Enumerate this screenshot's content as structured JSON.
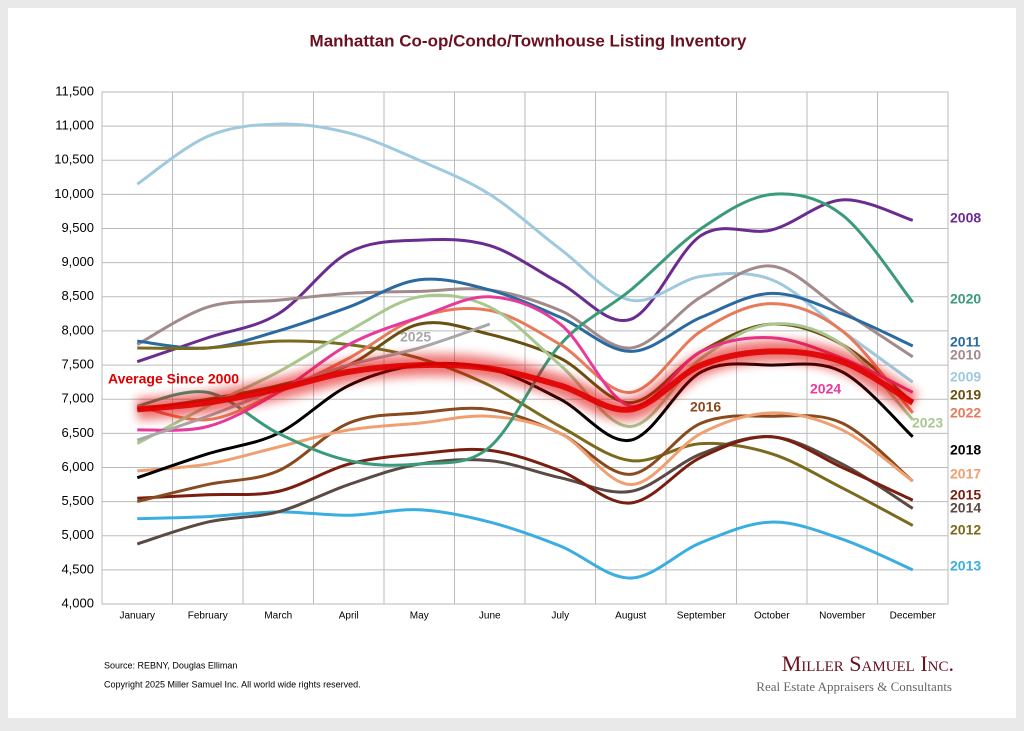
{
  "chart_data": {
    "type": "line",
    "title": "Manhattan Co-op/Condo/Townhouse Listing Inventory",
    "categories": [
      "January",
      "February",
      "March",
      "April",
      "May",
      "June",
      "July",
      "August",
      "September",
      "October",
      "November",
      "December"
    ],
    "ylim": [
      4000,
      11500
    ],
    "yticks": [
      {
        "value": 4000,
        "label": "4,000"
      },
      {
        "value": 4500,
        "label": "4,500"
      },
      {
        "value": 5000,
        "label": "5,000"
      },
      {
        "value": 5500,
        "label": "5,500"
      },
      {
        "value": 6000,
        "label": "6,000"
      },
      {
        "value": 6500,
        "label": "6,500"
      },
      {
        "value": 7000,
        "label": "7,000"
      },
      {
        "value": 7500,
        "label": "7,500"
      },
      {
        "value": 8000,
        "label": "8,000"
      },
      {
        "value": 8500,
        "label": "8,500"
      },
      {
        "value": 9000,
        "label": "9,000"
      },
      {
        "value": 9500,
        "label": "9,500"
      },
      {
        "value": 10000,
        "label": "10,000"
      },
      {
        "value": 10500,
        "label": "10,500"
      },
      {
        "value": 11000,
        "label": "11,000"
      },
      {
        "value": 11500,
        "label": "11,500"
      }
    ],
    "grid": true,
    "series": [
      {
        "name": "2008",
        "color": "#6a2c8e",
        "values": [
          7550,
          7900,
          8250,
          9150,
          9330,
          9250,
          8700,
          8170,
          9400,
          9480,
          9920,
          9620
        ]
      },
      {
        "name": "2009",
        "color": "#9ec9de",
        "values": [
          10150,
          10850,
          11030,
          10900,
          10500,
          10000,
          9200,
          8450,
          8800,
          8750,
          8000,
          7250
        ]
      },
      {
        "name": "2010",
        "color": "#a38a8a",
        "values": [
          7800,
          8350,
          8450,
          8550,
          8580,
          8600,
          8300,
          7750,
          8500,
          8950,
          8300,
          7620
        ]
      },
      {
        "name": "2011",
        "color": "#2a6aa0",
        "values": [
          7850,
          7750,
          8000,
          8350,
          8750,
          8600,
          8200,
          7700,
          8200,
          8550,
          8250,
          7780
        ]
      },
      {
        "name": "2012",
        "color": "#7a6a1e",
        "values": [
          7750,
          7750,
          7850,
          7800,
          7600,
          7200,
          6600,
          6100,
          6350,
          6200,
          5700,
          5150
        ]
      },
      {
        "name": "2013",
        "color": "#3aaee0",
        "values": [
          5250,
          5280,
          5350,
          5300,
          5380,
          5200,
          4850,
          4380,
          4900,
          5200,
          4950,
          4500
        ]
      },
      {
        "name": "2014",
        "color": "#5a4a44",
        "values": [
          4880,
          5200,
          5350,
          5750,
          6050,
          6100,
          5850,
          5650,
          6200,
          6450,
          6050,
          5400
        ]
      },
      {
        "name": "2015",
        "color": "#7a1e10",
        "values": [
          5550,
          5600,
          5650,
          6050,
          6200,
          6250,
          5950,
          5480,
          6150,
          6450,
          6000,
          5520
        ]
      },
      {
        "name": "2016",
        "color": "#8a4a20",
        "values": [
          5500,
          5750,
          5950,
          6650,
          6800,
          6850,
          6500,
          5900,
          6650,
          6750,
          6650,
          5800
        ]
      },
      {
        "name": "2017",
        "color": "#f0a070",
        "values": [
          5950,
          6050,
          6300,
          6550,
          6650,
          6750,
          6500,
          5750,
          6500,
          6800,
          6550,
          5800
        ]
      },
      {
        "name": "2018",
        "color": "#000000",
        "values": [
          5850,
          6200,
          6500,
          7200,
          7500,
          7450,
          7000,
          6400,
          7400,
          7500,
          7400,
          6450
        ]
      },
      {
        "name": "2019",
        "color": "#6a5010",
        "values": [
          6850,
          7000,
          7200,
          7500,
          8100,
          7950,
          7600,
          6950,
          7700,
          8100,
          7800,
          6950
        ]
      },
      {
        "name": "2020",
        "color": "#3a9a7a",
        "values": [
          6900,
          7100,
          6500,
          6100,
          6050,
          6300,
          7800,
          8600,
          9500,
          10000,
          9700,
          8420
        ]
      },
      {
        "name": "2022",
        "color": "#e87a5a",
        "values": [
          6900,
          6700,
          7100,
          7600,
          8200,
          8300,
          7800,
          7100,
          8000,
          8400,
          8000,
          6800
        ]
      },
      {
        "name": "2023",
        "color": "#a8c890",
        "values": [
          6350,
          6900,
          7400,
          8000,
          8500,
          8350,
          7500,
          6600,
          7600,
          8100,
          7800,
          6700
        ]
      },
      {
        "name": "2024",
        "color": "#e83a9a",
        "values": [
          6550,
          6600,
          7100,
          7800,
          8200,
          8500,
          8100,
          6900,
          7700,
          7900,
          7600,
          7100
        ]
      },
      {
        "name": "2025",
        "color": "#a8a8a8",
        "values": [
          6400,
          6750,
          7150,
          7500,
          7750,
          8100,
          null,
          null,
          null,
          null,
          null,
          null
        ]
      },
      {
        "name": "Average  Since 2000",
        "color": "#e00000",
        "values": [
          6850,
          6950,
          7150,
          7400,
          7500,
          7450,
          7200,
          6850,
          7500,
          7700,
          7550,
          6950
        ]
      }
    ],
    "source": "Source: REBNY, Douglas Elliman",
    "copyright": "Copyright 2025 Miller Samuel Inc.  All world wide rights reserved.",
    "brand": "Miller Samuel Inc.",
    "tagline": "Real Estate Appraisers & Consultants"
  }
}
